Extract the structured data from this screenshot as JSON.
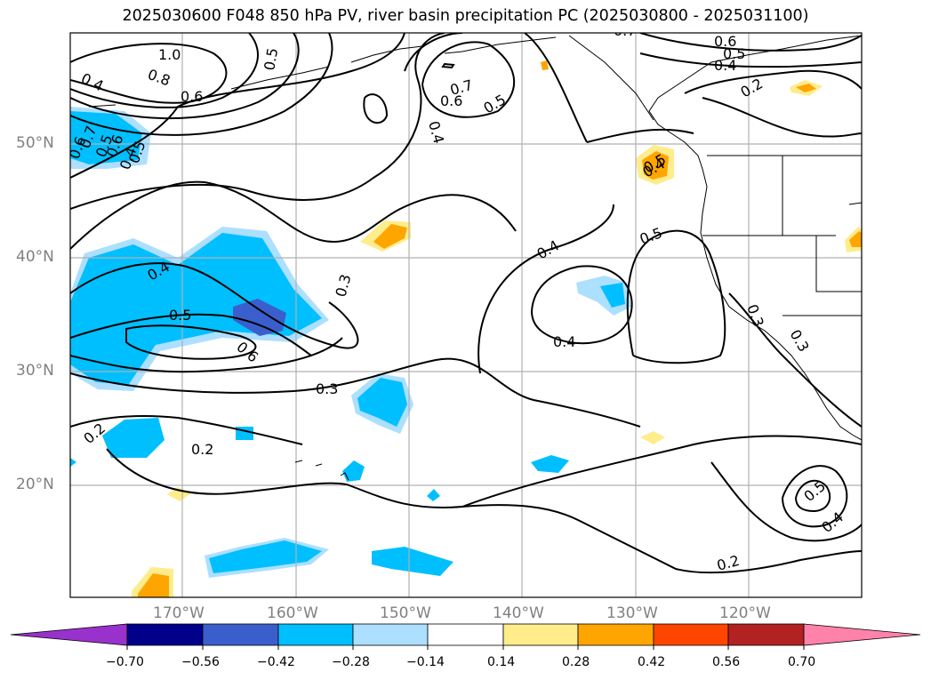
{
  "title": "2025030600 F048 850 hPa PV, river basin precipitation PC (2025030800 - 2025031100)",
  "lat_labels": [
    "50°N",
    "40°N",
    "30°N",
    "20°N"
  ],
  "lon_labels": [
    "170°W",
    "160°W",
    "150°W",
    "140°W",
    "130°W",
    "120°W"
  ],
  "contour_labels": [
    "1.0",
    "0.8",
    "0.4",
    "0.6",
    "0.5",
    "0.7",
    "0.6",
    "0.5",
    "0.4",
    "0.6",
    "0.5",
    "0.4",
    "0.2",
    "0.6",
    "0.5",
    "0.4",
    "0.7",
    "0.6",
    "0.5",
    "0.4",
    "0.5",
    "0.4",
    "0.3",
    "0.4",
    "0.5",
    "0.4",
    "0.5",
    "0.6",
    "0.3",
    "0.3",
    "0.2",
    "0.2",
    "0.3",
    "0.7",
    "0.5",
    "0.4",
    "0.2"
  ],
  "colorbar": {
    "ticks": [
      "−0.70",
      "−0.56",
      "−0.42",
      "−0.28",
      "−0.14",
      "0.14",
      "0.28",
      "0.42",
      "0.56",
      "0.70"
    ],
    "colors": [
      "#9932CC",
      "#00008B",
      "#3A5FCD",
      "#00BFFF",
      "#ADDFFF",
      "#FFFFFF",
      "#FFEC8B",
      "#FFA500",
      "#FF4500",
      "#B22222",
      "#FF82AB"
    ]
  },
  "map_colors": {
    "grid": "#b0b0b0",
    "coast": "#000000",
    "contour": "#000000"
  }
}
